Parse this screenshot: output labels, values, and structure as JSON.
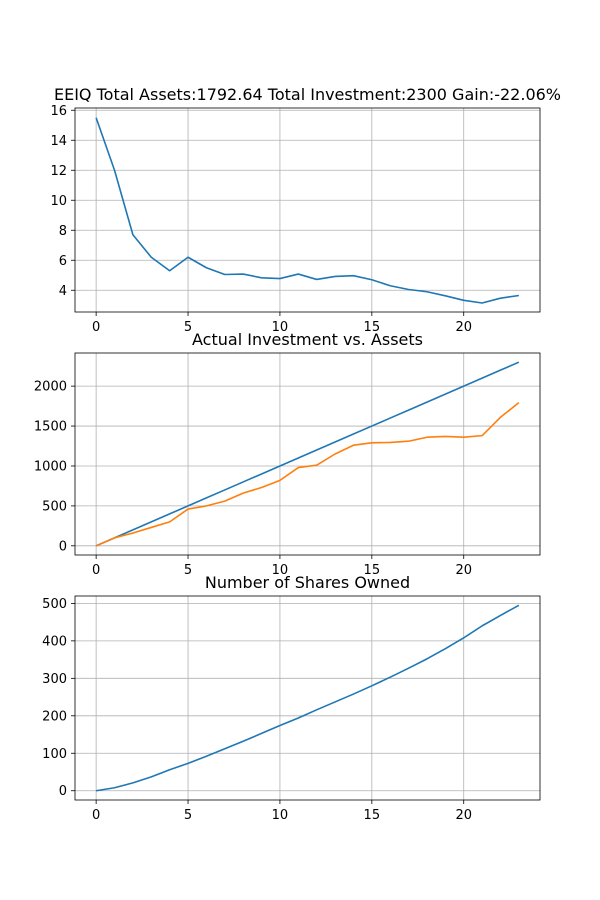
{
  "chart_data": [
    {
      "type": "line",
      "title": "EEIQ Total Assets:1792.64  Total Investment:2300  Gain:-22.06%",
      "xlabel": "",
      "ylabel": "",
      "x": [
        0,
        1,
        2,
        3,
        4,
        5,
        6,
        7,
        8,
        9,
        10,
        11,
        12,
        13,
        14,
        15,
        16,
        17,
        18,
        19,
        20,
        21,
        22,
        23
      ],
      "series": [
        {
          "color": "#1f77b4",
          "values": [
            15.5,
            12.0,
            7.7,
            6.2,
            5.3,
            6.2,
            5.5,
            5.05,
            5.08,
            4.83,
            4.78,
            5.08,
            4.72,
            4.92,
            4.97,
            4.7,
            4.3,
            4.05,
            3.9,
            3.63,
            3.33,
            3.15,
            3.47,
            3.65
          ]
        }
      ],
      "xlim": [
        -1.15,
        24.15
      ],
      "ylim": [
        2.55,
        16.15
      ],
      "xticks": [
        0,
        5,
        10,
        15,
        20
      ],
      "yticks": [
        4,
        6,
        8,
        10,
        12,
        14,
        16
      ],
      "grid": true
    },
    {
      "type": "line",
      "title": "Actual Investment vs. Assets",
      "xlabel": "",
      "ylabel": "",
      "x": [
        0,
        1,
        2,
        3,
        4,
        5,
        6,
        7,
        8,
        9,
        10,
        11,
        12,
        13,
        14,
        15,
        16,
        17,
        18,
        19,
        20,
        21,
        22,
        23
      ],
      "series": [
        {
          "color": "#1f77b4",
          "values": [
            0,
            100,
            200,
            300,
            400,
            500,
            600,
            700,
            800,
            900,
            1000,
            1100,
            1200,
            1300,
            1400,
            1500,
            1600,
            1700,
            1800,
            1900,
            2000,
            2100,
            2200,
            2300
          ]
        },
        {
          "color": "#ff7f0e",
          "values": [
            0,
            100,
            160,
            230,
            300,
            460,
            500,
            560,
            660,
            730,
            820,
            980,
            1010,
            1150,
            1260,
            1290,
            1295,
            1310,
            1360,
            1370,
            1360,
            1380,
            1610,
            1793
          ]
        }
      ],
      "xlim": [
        -1.15,
        24.15
      ],
      "ylim": [
        -115,
        2415
      ],
      "xticks": [
        0,
        5,
        10,
        15,
        20
      ],
      "yticks": [
        0,
        500,
        1000,
        1500,
        2000
      ],
      "grid": true
    },
    {
      "type": "line",
      "title": "Number of Shares Owned",
      "xlabel": "",
      "ylabel": "",
      "x": [
        0,
        1,
        2,
        3,
        4,
        5,
        6,
        7,
        8,
        9,
        10,
        11,
        12,
        13,
        14,
        15,
        16,
        17,
        18,
        19,
        20,
        21,
        22,
        23
      ],
      "series": [
        {
          "color": "#1f77b4",
          "values": [
            0,
            8,
            21,
            37,
            56,
            73,
            92,
            112,
            132,
            153,
            174,
            194,
            216,
            237,
            258,
            280,
            303,
            327,
            352,
            379,
            408,
            440,
            468,
            495
          ]
        }
      ],
      "xlim": [
        -1.15,
        24.15
      ],
      "ylim": [
        -24.75,
        519.75
      ],
      "xticks": [
        0,
        5,
        10,
        15,
        20
      ],
      "yticks": [
        0,
        100,
        200,
        300,
        400,
        500
      ],
      "grid": true
    }
  ]
}
